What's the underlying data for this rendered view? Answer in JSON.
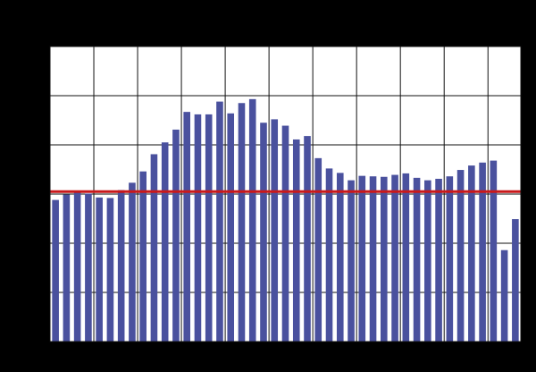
{
  "chart_data": {
    "type": "bar",
    "title": "",
    "xlabel": "",
    "ylabel": "",
    "grid": true,
    "x_grid_every": 4,
    "ylim": [
      0,
      6
    ],
    "y_grid_step": 1,
    "values": [
      2.88,
      2.99,
      3.04,
      3.01,
      2.93,
      2.92,
      3.08,
      3.23,
      3.46,
      3.81,
      4.05,
      4.31,
      4.67,
      4.62,
      4.62,
      4.88,
      4.64,
      4.85,
      4.93,
      4.45,
      4.52,
      4.39,
      4.11,
      4.18,
      3.73,
      3.52,
      3.43,
      3.28,
      3.37,
      3.36,
      3.35,
      3.39,
      3.42,
      3.33,
      3.28,
      3.31,
      3.36,
      3.49,
      3.58,
      3.64,
      3.68,
      1.86,
      2.49
    ],
    "reference_line": {
      "value": 3.05
    },
    "colors": {
      "background": "#000000",
      "plot_background": "#ffffff",
      "bar": "#4a519e",
      "grid": "#111111",
      "reference_line": "#c8191b"
    }
  }
}
